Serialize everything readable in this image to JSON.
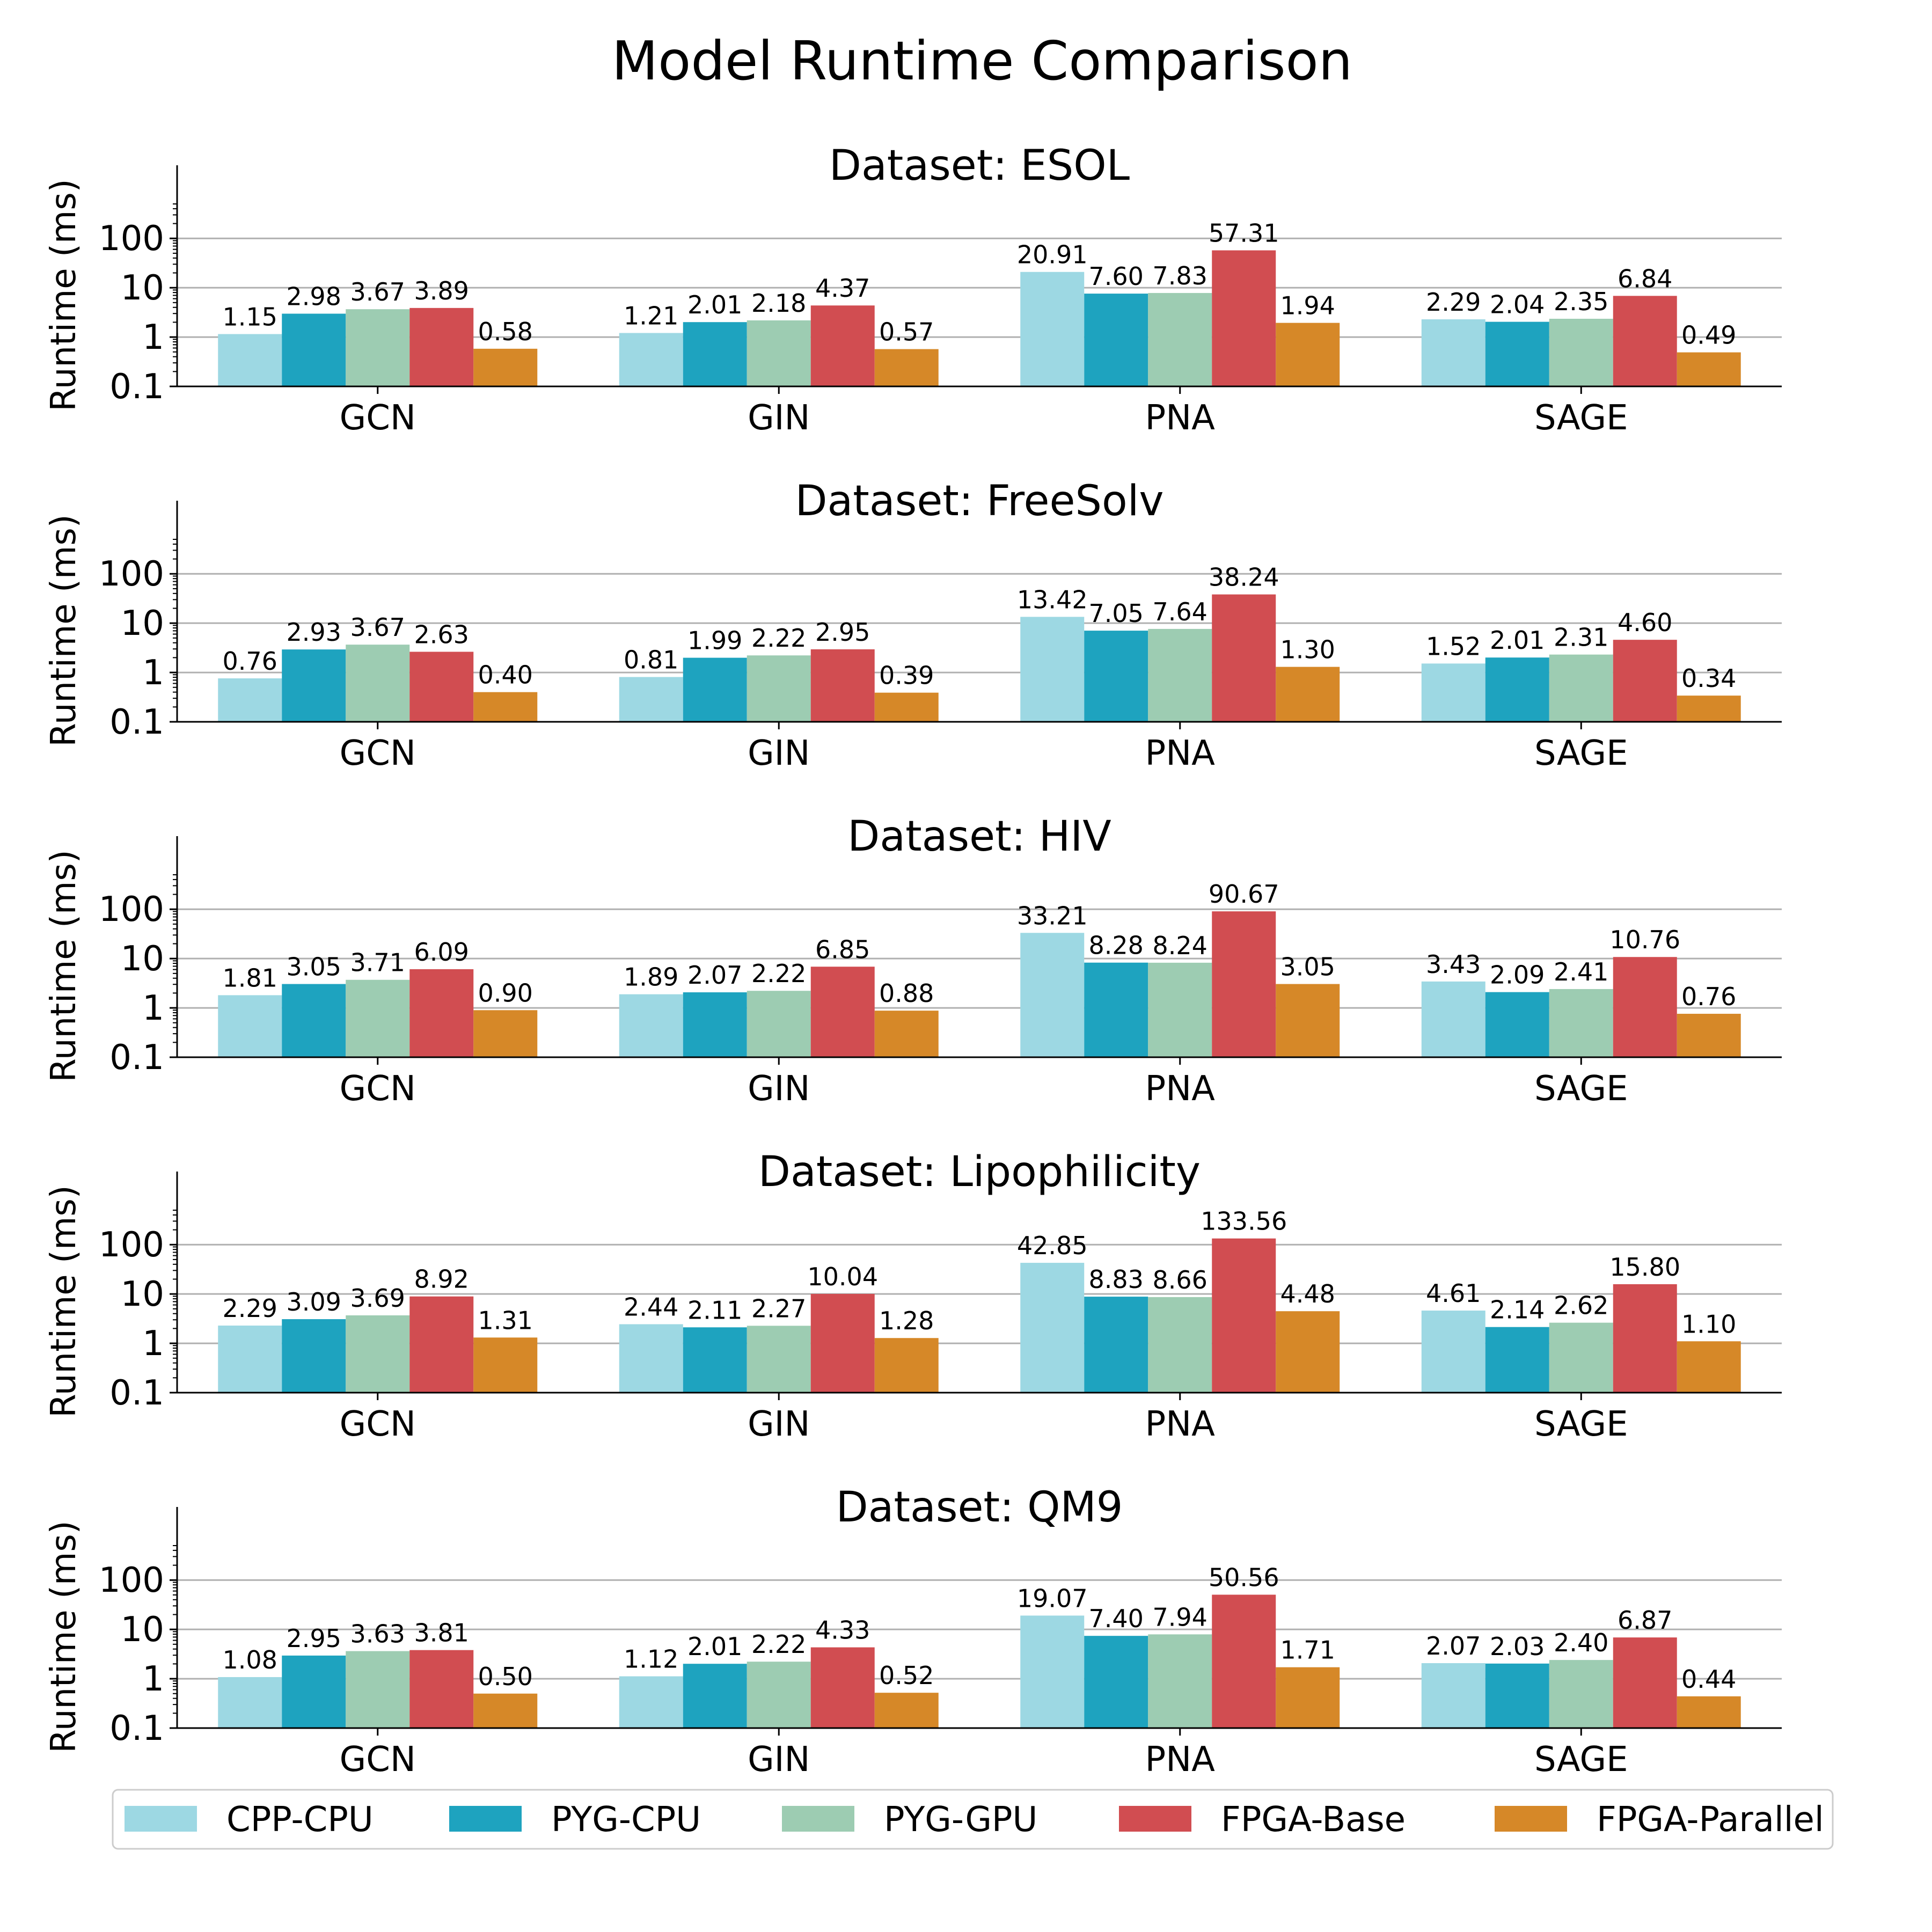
{
  "figure": {
    "title": "Model Runtime Comparison"
  },
  "legend": {
    "placement": "bottom-center",
    "items": [
      {
        "name": "CPP-CPU",
        "color": "#9dd8e3"
      },
      {
        "name": "PYG-CPU",
        "color": "#1ea3bf"
      },
      {
        "name": "PYG-GPU",
        "color": "#9dccb2"
      },
      {
        "name": "FPGA-Base",
        "color": "#d14d51"
      },
      {
        "name": "FPGA-Parallel",
        "color": "#d68828"
      }
    ]
  },
  "chart_data": [
    {
      "type": "bar",
      "title": "Dataset: ESOL",
      "xlabel": "",
      "ylabel": "Runtime (ms)",
      "yscale": "log",
      "ylim": [
        0.1,
        500
      ],
      "yticks": [
        "0.1",
        "1",
        "10",
        "100"
      ],
      "grid": "horizontal",
      "categories": [
        "GCN",
        "GIN",
        "PNA",
        "SAGE"
      ],
      "series": [
        {
          "name": "CPP-CPU",
          "values": [
            1.15,
            1.21,
            20.91,
            2.29
          ],
          "labels": [
            "1.15",
            "1.21",
            "20.91",
            "2.29"
          ]
        },
        {
          "name": "PYG-CPU",
          "values": [
            2.98,
            2.01,
            7.6,
            2.04
          ],
          "labels": [
            "2.98",
            "2.01",
            "7.60",
            "2.04"
          ]
        },
        {
          "name": "PYG-GPU",
          "values": [
            3.67,
            2.18,
            7.83,
            2.35
          ],
          "labels": [
            "3.67",
            "2.18",
            "7.83",
            "2.35"
          ]
        },
        {
          "name": "FPGA-Base",
          "values": [
            3.89,
            4.37,
            57.31,
            6.84
          ],
          "labels": [
            "3.89",
            "4.37",
            "57.31",
            "6.84"
          ]
        },
        {
          "name": "FPGA-Parallel",
          "values": [
            0.58,
            0.57,
            1.94,
            0.49
          ],
          "labels": [
            "0.58",
            "0.57",
            "1.94",
            "0.49"
          ]
        }
      ]
    },
    {
      "type": "bar",
      "title": "Dataset: FreeSolv",
      "xlabel": "",
      "ylabel": "Runtime (ms)",
      "yscale": "log",
      "ylim": [
        0.1,
        500
      ],
      "yticks": [
        "0.1",
        "1",
        "10",
        "100"
      ],
      "grid": "horizontal",
      "categories": [
        "GCN",
        "GIN",
        "PNA",
        "SAGE"
      ],
      "series": [
        {
          "name": "CPP-CPU",
          "values": [
            0.76,
            0.81,
            13.42,
            1.52
          ],
          "labels": [
            "0.76",
            "0.81",
            "13.42",
            "1.52"
          ]
        },
        {
          "name": "PYG-CPU",
          "values": [
            2.93,
            1.99,
            7.05,
            2.01
          ],
          "labels": [
            "2.93",
            "1.99",
            "7.05",
            "2.01"
          ]
        },
        {
          "name": "PYG-GPU",
          "values": [
            3.67,
            2.22,
            7.64,
            2.31
          ],
          "labels": [
            "3.67",
            "2.22",
            "7.64",
            "2.31"
          ]
        },
        {
          "name": "FPGA-Base",
          "values": [
            2.63,
            2.95,
            38.24,
            4.6
          ],
          "labels": [
            "2.63",
            "2.95",
            "38.24",
            "4.60"
          ]
        },
        {
          "name": "FPGA-Parallel",
          "values": [
            0.4,
            0.39,
            1.3,
            0.34
          ],
          "labels": [
            "0.40",
            "0.39",
            "1.30",
            "0.34"
          ]
        }
      ]
    },
    {
      "type": "bar",
      "title": "Dataset: HIV",
      "xlabel": "",
      "ylabel": "Runtime (ms)",
      "yscale": "log",
      "ylim": [
        0.1,
        500
      ],
      "yticks": [
        "0.1",
        "1",
        "10",
        "100"
      ],
      "grid": "horizontal",
      "categories": [
        "GCN",
        "GIN",
        "PNA",
        "SAGE"
      ],
      "series": [
        {
          "name": "CPP-CPU",
          "values": [
            1.81,
            1.89,
            33.21,
            3.43
          ],
          "labels": [
            "1.81",
            "1.89",
            "33.21",
            "3.43"
          ]
        },
        {
          "name": "PYG-CPU",
          "values": [
            3.05,
            2.07,
            8.28,
            2.09
          ],
          "labels": [
            "3.05",
            "2.07",
            "8.28",
            "2.09"
          ]
        },
        {
          "name": "PYG-GPU",
          "values": [
            3.71,
            2.22,
            8.24,
            2.41
          ],
          "labels": [
            "3.71",
            "2.22",
            "8.24",
            "2.41"
          ]
        },
        {
          "name": "FPGA-Base",
          "values": [
            6.09,
            6.85,
            90.67,
            10.76
          ],
          "labels": [
            "6.09",
            "6.85",
            "90.67",
            "10.76"
          ]
        },
        {
          "name": "FPGA-Parallel",
          "values": [
            0.9,
            0.88,
            3.05,
            0.76
          ],
          "labels": [
            "0.90",
            "0.88",
            "3.05",
            "0.76"
          ]
        }
      ]
    },
    {
      "type": "bar",
      "title": "Dataset: Lipophilicity",
      "xlabel": "",
      "ylabel": "Runtime (ms)",
      "yscale": "log",
      "ylim": [
        0.1,
        500
      ],
      "yticks": [
        "0.1",
        "1",
        "10",
        "100"
      ],
      "grid": "horizontal",
      "categories": [
        "GCN",
        "GIN",
        "PNA",
        "SAGE"
      ],
      "series": [
        {
          "name": "CPP-CPU",
          "values": [
            2.29,
            2.44,
            42.85,
            4.61
          ],
          "labels": [
            "2.29",
            "2.44",
            "42.85",
            "4.61"
          ]
        },
        {
          "name": "PYG-CPU",
          "values": [
            3.09,
            2.11,
            8.83,
            2.14
          ],
          "labels": [
            "3.09",
            "2.11",
            "8.83",
            "2.14"
          ]
        },
        {
          "name": "PYG-GPU",
          "values": [
            3.69,
            2.27,
            8.66,
            2.62
          ],
          "labels": [
            "3.69",
            "2.27",
            "8.66",
            "2.62"
          ]
        },
        {
          "name": "FPGA-Base",
          "values": [
            8.92,
            10.04,
            133.56,
            15.8
          ],
          "labels": [
            "8.92",
            "10.04",
            "133.56",
            "15.80"
          ]
        },
        {
          "name": "FPGA-Parallel",
          "values": [
            1.31,
            1.28,
            4.48,
            1.1
          ],
          "labels": [
            "1.31",
            "1.28",
            "4.48",
            "1.10"
          ]
        }
      ]
    },
    {
      "type": "bar",
      "title": "Dataset: QM9",
      "xlabel": "",
      "ylabel": "Runtime (ms)",
      "yscale": "log",
      "ylim": [
        0.1,
        500
      ],
      "yticks": [
        "0.1",
        "1",
        "10",
        "100"
      ],
      "grid": "horizontal",
      "categories": [
        "GCN",
        "GIN",
        "PNA",
        "SAGE"
      ],
      "series": [
        {
          "name": "CPP-CPU",
          "values": [
            1.08,
            1.12,
            19.07,
            2.07
          ],
          "labels": [
            "1.08",
            "1.12",
            "19.07",
            "2.07"
          ]
        },
        {
          "name": "PYG-CPU",
          "values": [
            2.95,
            2.01,
            7.4,
            2.03
          ],
          "labels": [
            "2.95",
            "2.01",
            "7.40",
            "2.03"
          ]
        },
        {
          "name": "PYG-GPU",
          "values": [
            3.63,
            2.22,
            7.94,
            2.4
          ],
          "labels": [
            "3.63",
            "2.22",
            "7.94",
            "2.40"
          ]
        },
        {
          "name": "FPGA-Base",
          "values": [
            3.81,
            4.33,
            50.56,
            6.87
          ],
          "labels": [
            "3.81",
            "4.33",
            "50.56",
            "6.87"
          ]
        },
        {
          "name": "FPGA-Parallel",
          "values": [
            0.5,
            0.52,
            1.71,
            0.44
          ],
          "labels": [
            "0.50",
            "0.52",
            "1.71",
            "0.44"
          ]
        }
      ]
    }
  ]
}
